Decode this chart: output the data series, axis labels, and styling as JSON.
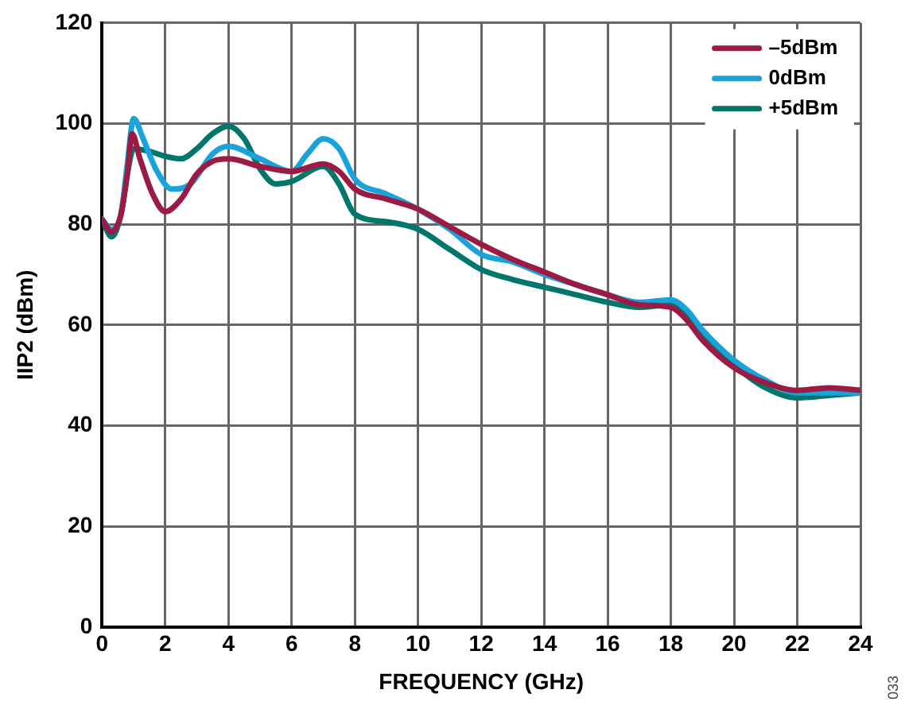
{
  "chart_data": {
    "type": "line",
    "xlabel": "FREQUENCY (GHz)",
    "ylabel": "IIP2 (dBm)",
    "xlim": [
      0,
      24
    ],
    "xticks": [
      0,
      2,
      4,
      6,
      8,
      10,
      12,
      14,
      16,
      18,
      20,
      22,
      24
    ],
    "ylim": [
      0,
      120
    ],
    "yticks": [
      0,
      20,
      40,
      60,
      80,
      100,
      120
    ],
    "grid": true,
    "legend": "top right",
    "marker": "none",
    "line_style": "solid",
    "annotations": [
      "033"
    ],
    "series": [
      {
        "name": "–5dBm",
        "color": "#9b1b45",
        "x": [
          0,
          0.3,
          0.6,
          0.8,
          0.95,
          1.2,
          1.6,
          2,
          2.5,
          3,
          3.5,
          4,
          5,
          6,
          7,
          7.5,
          8,
          9,
          10,
          11,
          12,
          13,
          14,
          15,
          16,
          17,
          18,
          18.5,
          19,
          20,
          21,
          22,
          23,
          24
        ],
        "values": [
          81,
          78.5,
          82,
          90,
          98,
          93,
          86,
          82.5,
          85,
          90,
          92.5,
          93,
          91.5,
          90.5,
          92,
          90.5,
          87,
          85,
          83,
          79.5,
          76,
          73,
          70.5,
          68,
          66,
          64,
          63.5,
          61,
          57,
          51.5,
          48.5,
          47,
          47.5,
          47
        ]
      },
      {
        "name": "0dBm",
        "color": "#1aa3da",
        "x": [
          0,
          0.3,
          0.6,
          0.8,
          1,
          1.3,
          1.7,
          2.2,
          2.8,
          3.5,
          4,
          5,
          6,
          6.5,
          7,
          7.5,
          8,
          9,
          10,
          11,
          12,
          13,
          14,
          15,
          16,
          17,
          18,
          18.5,
          19,
          20,
          21,
          22,
          23,
          24
        ],
        "values": [
          81,
          79,
          82,
          92,
          101,
          97,
          91,
          87,
          88,
          94,
          95.5,
          93,
          90.5,
          94,
          97,
          95,
          89,
          86,
          83,
          79,
          74,
          72.5,
          70,
          68,
          66,
          64.5,
          65,
          63,
          59,
          53,
          49,
          46.5,
          46.5,
          46.5
        ]
      },
      {
        "name": "+5dBm",
        "color": "#00776a",
        "x": [
          0,
          0.3,
          0.6,
          0.8,
          1,
          1.5,
          2,
          2.5,
          3,
          3.5,
          4,
          4.5,
          5,
          5.5,
          6,
          7,
          7.5,
          8,
          9,
          10,
          11,
          12,
          13,
          14,
          15,
          16,
          17,
          18,
          18.5,
          19,
          20,
          21,
          22,
          23,
          24
        ],
        "values": [
          81,
          77.5,
          82,
          90,
          95,
          94.5,
          93.5,
          93,
          95,
          98,
          99.5,
          97,
          91,
          88,
          88.5,
          91.5,
          88,
          82,
          80.5,
          79,
          75,
          71,
          69,
          67.5,
          66,
          64.5,
          63.5,
          64,
          62,
          58,
          52,
          47.5,
          45.5,
          46,
          46.5
        ]
      }
    ]
  }
}
